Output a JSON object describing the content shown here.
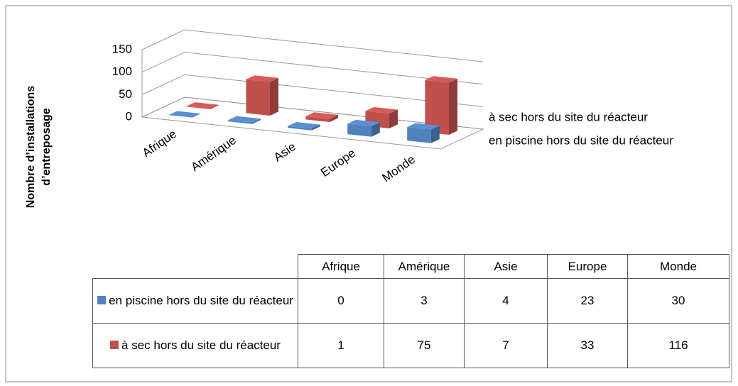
{
  "chart_data": {
    "type": "bar3d",
    "y_label": "Nombre d’installations d’entreposage",
    "categories": [
      "Afrique",
      "Amérique",
      "Asie",
      "Europe",
      "Monde"
    ],
    "series": [
      {
        "name": "en piscine hors du site du réacteur",
        "color": "#4f81bd",
        "values": [
          0,
          3,
          4,
          23,
          30
        ]
      },
      {
        "name": "à sec hors du site du réacteur",
        "color": "#c0504d",
        "values": [
          1,
          75,
          7,
          33,
          116
        ]
      }
    ],
    "ylim": [
      0,
      150
    ],
    "yticks": [
      0,
      50,
      100,
      150
    ],
    "grid": true
  }
}
